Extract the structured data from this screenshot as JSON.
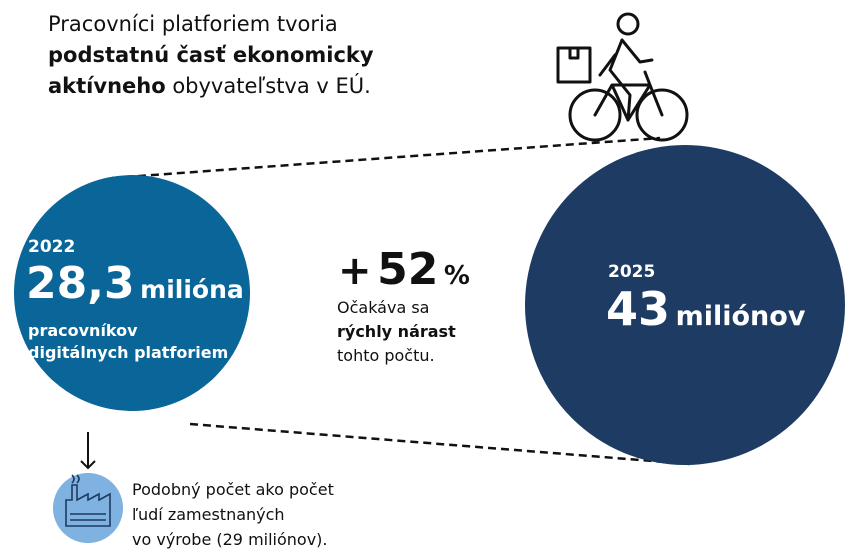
{
  "headline": {
    "line1": "Pracovníci platforiem tvoria",
    "line2": "podstatnú časť ekonomicky",
    "line3_bold": "aktívneho",
    "line3_rest": "obyvateľstva v EÚ."
  },
  "left": {
    "year": "2022",
    "number": "28,3",
    "unit": "milióna",
    "caption1": "pracovníkov",
    "caption2": "digitálnych platforiem"
  },
  "growth": {
    "plus": "+",
    "number": "52",
    "percent": "%",
    "line1": "Očakáva sa",
    "line2": "rýchly nárast",
    "line3": "tohto počtu."
  },
  "right": {
    "year": "2025",
    "number": "43",
    "unit": "miliónov"
  },
  "note": {
    "line1": "Podobný počet ako počet",
    "line2": "ľudí zamestnaných",
    "line3": "vo výrobe (29 miliónov)."
  }
}
